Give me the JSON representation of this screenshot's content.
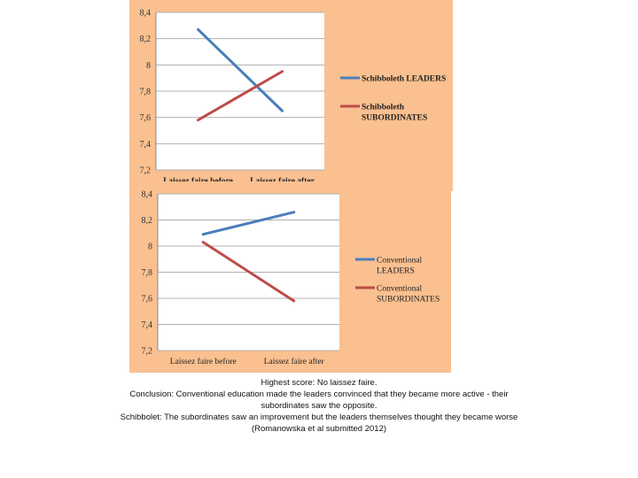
{
  "chart_data": [
    {
      "type": "line",
      "categories": [
        "Laissez faire before",
        "Laissez faire after"
      ],
      "series": [
        {
          "name": "Schibboleth LEADERS",
          "values": [
            8.27,
            7.65
          ],
          "color": "#4a7ebb"
        },
        {
          "name": "Schibboleth SUBORDINATES",
          "values": [
            7.58,
            7.95
          ],
          "color": "#be4b48"
        }
      ],
      "yticks": [
        "8,4",
        "8,2",
        "8",
        "7,8",
        "7,6",
        "7,4",
        "7,2"
      ],
      "ylim": [
        7.2,
        8.4
      ],
      "background": "#fac090",
      "legend_position": "right"
    },
    {
      "type": "line",
      "categories": [
        "Laissez faire before",
        "Laissez faire after"
      ],
      "series": [
        {
          "name": "Conventional LEADERS",
          "values": [
            8.09,
            8.26
          ],
          "color": "#4a7ebb"
        },
        {
          "name": "Conventional SUBORDINATES",
          "values": [
            8.03,
            7.58
          ],
          "color": "#be4b48"
        }
      ],
      "yticks": [
        "8,4",
        "8,2",
        "8",
        "7,8",
        "7,6",
        "7,4",
        "7,2"
      ],
      "ylim": [
        7.2,
        8.4
      ],
      "background": "#fac090",
      "legend_position": "right"
    }
  ],
  "caption": {
    "line1": "Highest score: No laissez faire.",
    "line2": "Conclusion: Conventional education made the leaders convinced that they became more active - their",
    "line3": "subordinates saw the opposite.",
    "line4": "Schibbolet: The subordinates saw an improvement but the leaders themselves thought they became worse",
    "line5": "(Romanowska et al submitted 2012)"
  }
}
